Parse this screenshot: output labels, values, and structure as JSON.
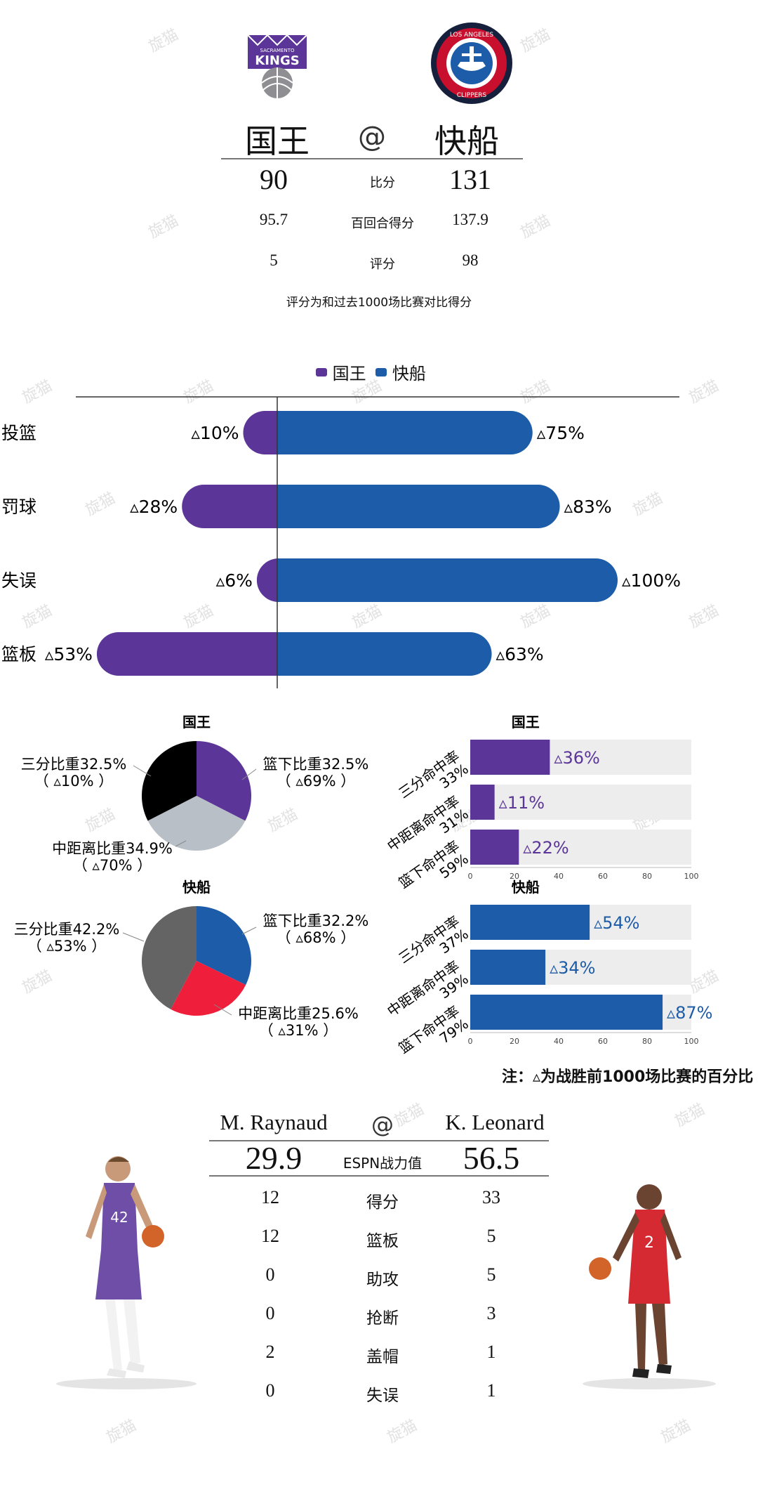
{
  "teams": {
    "home_name": "国王",
    "away_name": "快船",
    "at": "@",
    "kings_logo_text": "SACRAMENTO KINGS",
    "clippers_logo_text": "LOS ANGELES CLIPPERS"
  },
  "summary": {
    "rows": [
      {
        "label": "比分",
        "home": "90",
        "away": "131"
      },
      {
        "label": "百回合得分",
        "home": "95.7",
        "away": "137.9"
      },
      {
        "label": "评分",
        "home": "5",
        "away": "98"
      }
    ],
    "note": "评分为和过去1000场比赛对比得分"
  },
  "legend": {
    "home": "国王",
    "away": "快船"
  },
  "colors": {
    "kings": "#5b3598",
    "clippers": "#1d5ca8",
    "clippers_red": "#ef1e3b",
    "black": "#000000",
    "grey": "#b9bfc6",
    "dark_grey": "#646464",
    "bar_bg": "#ededed"
  },
  "chart_data": [
    {
      "type": "bar",
      "categories": [
        "投篮",
        "罚球",
        "失误",
        "篮板"
      ],
      "series": [
        {
          "name": "国王",
          "values": [
            10,
            28,
            6,
            53
          ]
        },
        {
          "name": "快船",
          "values": [
            75,
            83,
            100,
            63
          ]
        }
      ],
      "value_prefix": "▵",
      "value_suffix": "%"
    },
    {
      "type": "pie",
      "title": "国王",
      "slices": [
        {
          "label": "篮下比重32.5%",
          "sub": "（ ▵69% ）",
          "value": 32.5,
          "color": "#5b3598"
        },
        {
          "label": "中距离比重34.9%",
          "sub": "（ ▵70% ）",
          "value": 34.9,
          "color": "#b9bfc6"
        },
        {
          "label": "三分比重32.5%",
          "sub": "（ ▵10% ）",
          "value": 32.5,
          "color": "#000000"
        }
      ]
    },
    {
      "type": "bar",
      "title": "国王",
      "categories": [
        "三分命中率\n33%",
        "中距离命中率\n31%",
        "篮下命中率\n59%"
      ],
      "values": [
        36,
        11,
        22
      ],
      "value_labels": [
        "▵36%",
        "▵11%",
        "▵22%"
      ],
      "xlim": [
        0,
        100
      ],
      "ticks": [
        "0",
        "20",
        "40",
        "60",
        "80",
        "100"
      ]
    },
    {
      "type": "pie",
      "title": "快船",
      "slices": [
        {
          "label": "篮下比重32.2%",
          "sub": "（ ▵68% ）",
          "value": 32.2,
          "color": "#1d5ca8"
        },
        {
          "label": "中距离比重25.6%",
          "sub": "（ ▵31% ）",
          "value": 25.6,
          "color": "#ef1e3b"
        },
        {
          "label": "三分比重42.2%",
          "sub": "（ ▵53% ）",
          "value": 42.2,
          "color": "#646464"
        }
      ]
    },
    {
      "type": "bar",
      "title": "快船",
      "categories": [
        "三分命中率\n37%",
        "中距离命中率\n39%",
        "篮下命中率\n79%"
      ],
      "values": [
        54,
        34,
        87
      ],
      "value_labels": [
        "▵54%",
        "▵34%",
        "▵87%"
      ],
      "xlim": [
        0,
        100
      ],
      "ticks": [
        "0",
        "20",
        "40",
        "60",
        "80",
        "100"
      ]
    }
  ],
  "shot_note": "注：▵为战胜前1000场比赛的百分比",
  "players": {
    "home_name": "M. Raynaud",
    "away_name": "K. Leonard",
    "at": "@",
    "rating_label": "ESPN战力值",
    "home_rating": "29.9",
    "away_rating": "56.5",
    "home_jersey": "42",
    "away_jersey": "2",
    "stats": [
      {
        "label": "得分",
        "home": "12",
        "away": "33"
      },
      {
        "label": "篮板",
        "home": "12",
        "away": "5"
      },
      {
        "label": "助攻",
        "home": "0",
        "away": "5"
      },
      {
        "label": "抢断",
        "home": "0",
        "away": "3"
      },
      {
        "label": "盖帽",
        "home": "2",
        "away": "1"
      },
      {
        "label": "失误",
        "home": "0",
        "away": "1"
      }
    ]
  },
  "watermark": "旋猫"
}
